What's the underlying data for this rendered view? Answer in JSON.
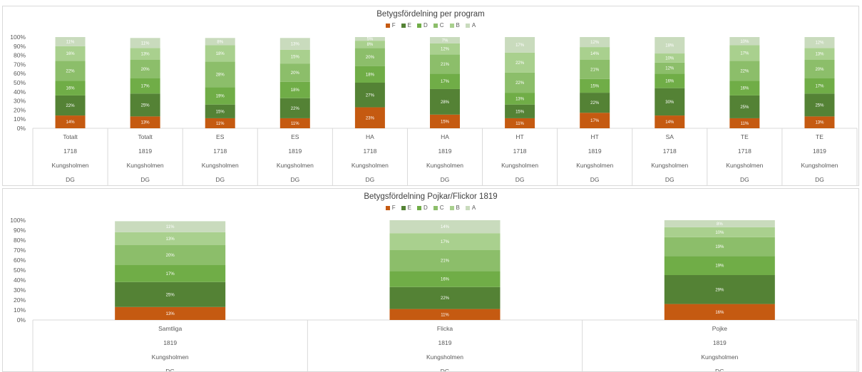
{
  "legend_labels": [
    "F",
    "E",
    "D",
    "C",
    "B",
    "A"
  ],
  "colors": [
    "#c55a11",
    "#548235",
    "#70ad47",
    "#8cbe6a",
    "#a9d08e",
    "#c9dbbd"
  ],
  "y_ticks": [
    "0%",
    "10%",
    "20%",
    "30%",
    "40%",
    "50%",
    "60%",
    "70%",
    "80%",
    "90%",
    "100%"
  ],
  "chart_data": [
    {
      "type": "bar",
      "stacked": true,
      "title": "Betygsfördelning per program",
      "ylim": [
        0,
        100
      ],
      "legend": "top",
      "categories": [
        [
          "Totalt",
          "1718",
          "Kungsholmen",
          "DG"
        ],
        [
          "Totalt",
          "1819",
          "Kungsholmen",
          "DG"
        ],
        [
          "ES",
          "1718",
          "Kungsholmen",
          "DG"
        ],
        [
          "ES",
          "1819",
          "Kungsholmen",
          "DG"
        ],
        [
          "HA",
          "1718",
          "Kungsholmen",
          "DG"
        ],
        [
          "HA",
          "1819",
          "Kungsholmen",
          "DG"
        ],
        [
          "HT",
          "1718",
          "Kungsholmen",
          "DG"
        ],
        [
          "HT",
          "1819",
          "Kungsholmen",
          "DG"
        ],
        [
          "SA",
          "1718",
          "Kungsholmen",
          "DG"
        ],
        [
          "TE",
          "1718",
          "Kungsholmen",
          "DG"
        ],
        [
          "TE",
          "1819",
          "Kungsholmen",
          "DG"
        ]
      ],
      "series": [
        {
          "name": "F",
          "values": [
            14,
            13,
            11,
            11,
            23,
            15,
            11,
            17,
            14,
            11,
            13
          ]
        },
        {
          "name": "E",
          "values": [
            22,
            25,
            15,
            22,
            27,
            28,
            15,
            22,
            30,
            25,
            25
          ]
        },
        {
          "name": "D",
          "values": [
            16,
            17,
            19,
            18,
            18,
            17,
            13,
            15,
            16,
            16,
            17
          ]
        },
        {
          "name": "C",
          "values": [
            22,
            20,
            28,
            20,
            20,
            21,
            22,
            21,
            12,
            22,
            20
          ]
        },
        {
          "name": "B",
          "values": [
            16,
            13,
            18,
            15,
            8,
            12,
            22,
            14,
            10,
            17,
            13
          ]
        },
        {
          "name": "A",
          "values": [
            11,
            11,
            8,
            13,
            5,
            7,
            17,
            12,
            18,
            10,
            12
          ]
        }
      ]
    },
    {
      "type": "bar",
      "stacked": true,
      "title": "Betygsfördelning Pojkar/Flickor 1819",
      "ylim": [
        0,
        100
      ],
      "legend": "top",
      "categories": [
        [
          "Samtliga",
          "1819",
          "Kungsholmen",
          "DG"
        ],
        [
          "Flicka",
          "1819",
          "Kungsholmen",
          "DG"
        ],
        [
          "Pojke",
          "1819",
          "Kungsholmen",
          "DG"
        ]
      ],
      "series": [
        {
          "name": "F",
          "values": [
            13,
            11,
            16
          ]
        },
        {
          "name": "E",
          "values": [
            25,
            22,
            29
          ]
        },
        {
          "name": "D",
          "values": [
            17,
            16,
            19
          ]
        },
        {
          "name": "C",
          "values": [
            20,
            21,
            19
          ]
        },
        {
          "name": "B",
          "values": [
            13,
            17,
            10
          ]
        },
        {
          "name": "A",
          "values": [
            11,
            14,
            8
          ]
        }
      ]
    }
  ]
}
